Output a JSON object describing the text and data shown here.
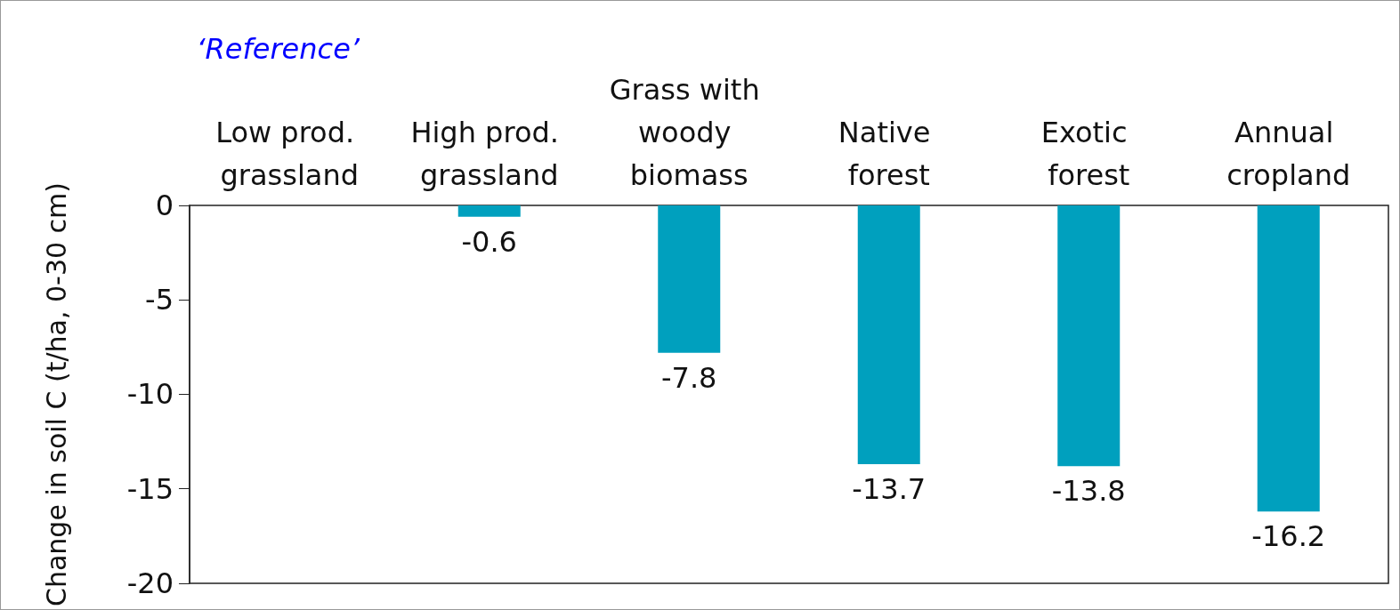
{
  "chart_data": {
    "type": "bar",
    "categories": [
      "Low prod. grassland",
      "High prod. grassland",
      "Grass with woody biomass",
      "Native forest",
      "Exotic forest",
      "Annual cropland"
    ],
    "values": [
      0,
      -0.6,
      -7.8,
      -13.7,
      -13.8,
      -16.2
    ],
    "value_labels": [
      null,
      "-0.6",
      "-7.8",
      "-13.7",
      "-13.8",
      "-16.2"
    ],
    "color": "#00a0be",
    "ylabel": "Change in soil C (t/ha, 0-30 cm)",
    "ylim": [
      -20,
      0
    ],
    "yticks": [
      -20,
      -15,
      -10,
      -5,
      0
    ],
    "annotations": [
      "‘Reference’"
    ]
  }
}
